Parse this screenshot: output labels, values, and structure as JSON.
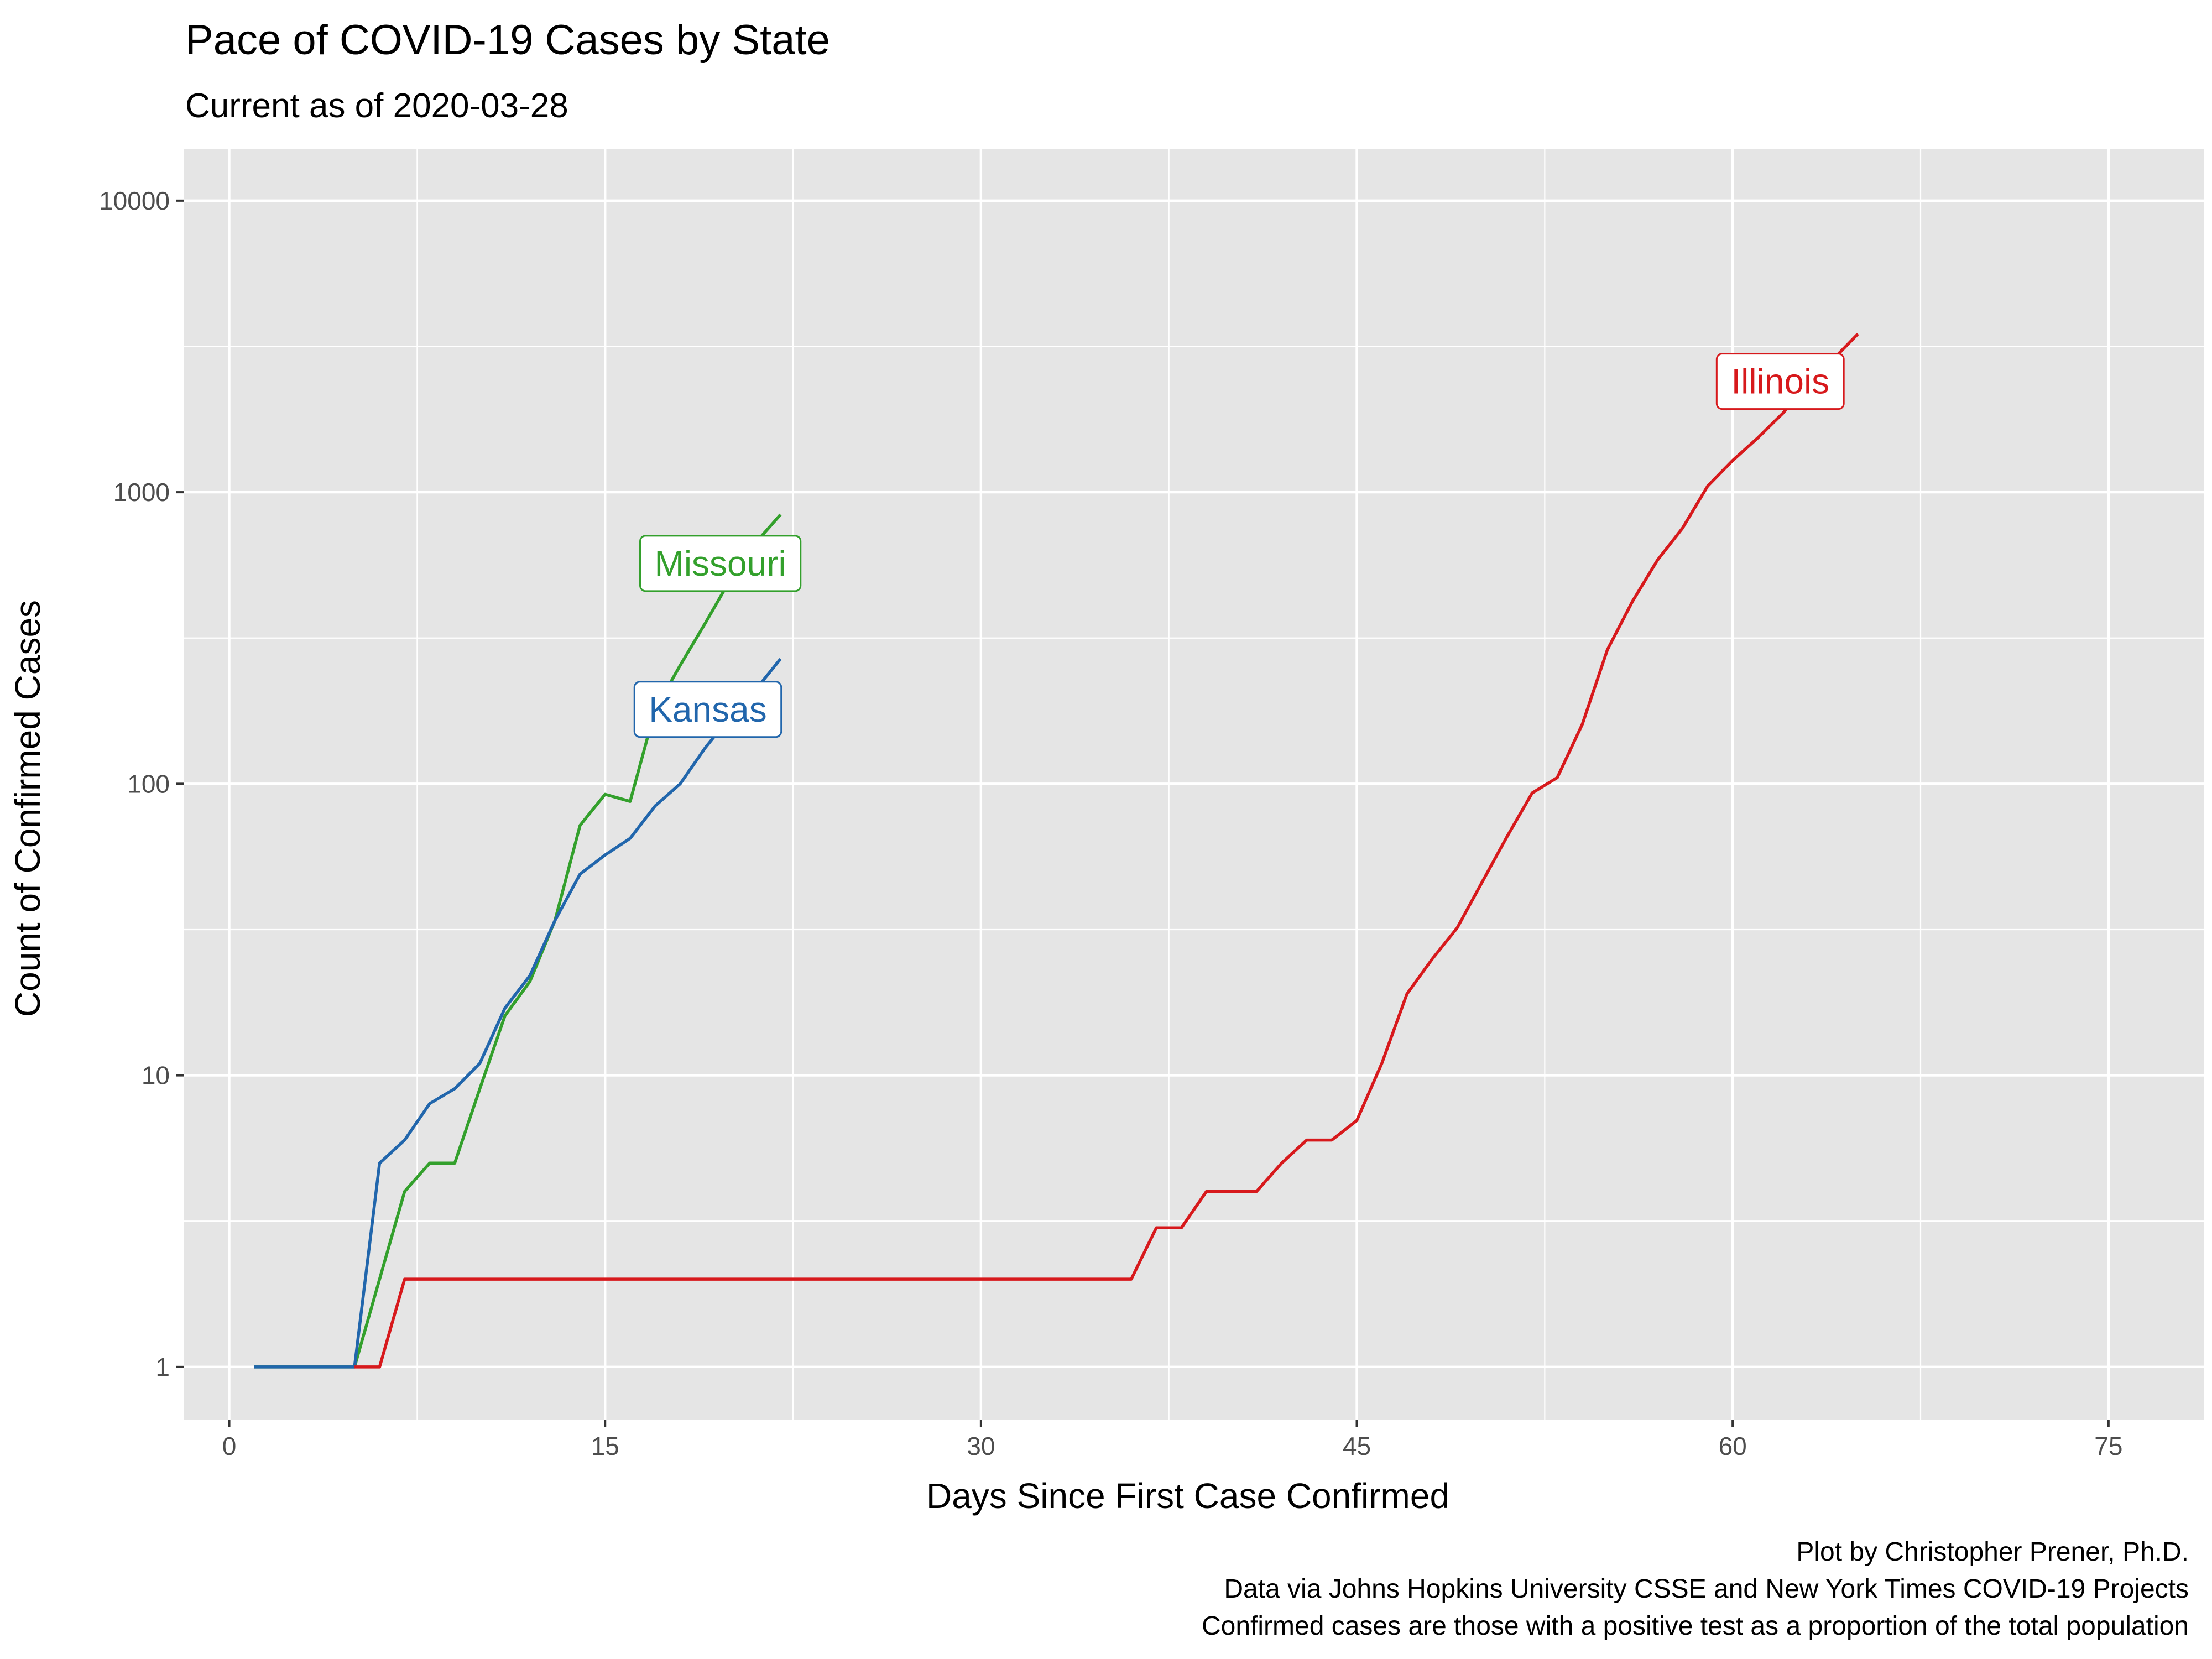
{
  "chart_data": {
    "type": "line",
    "title": "Pace of COVID-19 Cases by State",
    "subtitle": "Current as of 2020-03-28",
    "xlabel": "Days Since First Case Confirmed",
    "ylabel": "Count of Confirmed Cases",
    "xlim": [
      -1.8,
      78.8
    ],
    "ylim": [
      0.66,
      15000
    ],
    "yscale": "log",
    "x_ticks": [
      0,
      15,
      30,
      45,
      60,
      75
    ],
    "x_tick_labels": [
      "0",
      "15",
      "30",
      "45",
      "60",
      "75"
    ],
    "y_ticks": [
      1,
      10,
      100,
      1000,
      10000
    ],
    "y_tick_labels": [
      "1",
      "10",
      "100",
      "1000",
      "10000"
    ],
    "grid": true,
    "legend": "none",
    "background": "#e5e5e5",
    "caption": [
      "Plot by Christopher Prener, Ph.D.",
      "Data via Johns Hopkins University CSSE and New York Times COVID-19 Projects",
      "Confirmed cases are those with a positive test as a proportion of the total population"
    ],
    "series": [
      {
        "name": "Missouri",
        "color": "#33a02c",
        "label_at": [
          19.6,
          570
        ],
        "x": [
          1,
          2,
          3,
          4,
          5,
          6,
          7,
          8,
          9,
          10,
          11,
          12,
          13,
          14,
          15,
          16,
          17,
          18,
          19,
          20,
          21,
          22
        ],
        "y": [
          1,
          1,
          1,
          1,
          1,
          2,
          4,
          5,
          5,
          9,
          16,
          21,
          34,
          72,
          92,
          87,
          180,
          255,
          356,
          502,
          670,
          838
        ]
      },
      {
        "name": "Kansas",
        "color": "#2166ac",
        "label_at": [
          19.1,
          180
        ],
        "x": [
          1,
          2,
          3,
          4,
          5,
          6,
          7,
          8,
          9,
          10,
          11,
          12,
          13,
          14,
          15,
          16,
          17,
          18,
          19,
          20,
          21,
          22
        ],
        "y": [
          1,
          1,
          1,
          1,
          1,
          5,
          6,
          8,
          9,
          11,
          17,
          22,
          34,
          49,
          57,
          65,
          84,
          100,
          133,
          170,
          210,
          268
        ]
      },
      {
        "name": "Illinois",
        "color": "#d7191c",
        "label_at": [
          61.9,
          2400
        ],
        "x": [
          5,
          6,
          7,
          36,
          37,
          38,
          39,
          40,
          41,
          42,
          43,
          44,
          45,
          46,
          47,
          48,
          49,
          50,
          51,
          52,
          53,
          54,
          55,
          56,
          57,
          58,
          59,
          60,
          61,
          62,
          63,
          64,
          65
        ],
        "y": [
          1,
          1,
          2,
          2,
          3,
          3,
          4,
          4,
          4,
          5,
          6,
          6,
          7,
          11,
          19,
          25,
          32,
          46,
          66,
          93,
          105,
          160,
          288,
          422,
          585,
          753,
          1049,
          1285,
          1535,
          1865,
          2350,
          2850,
          3491
        ]
      }
    ]
  }
}
